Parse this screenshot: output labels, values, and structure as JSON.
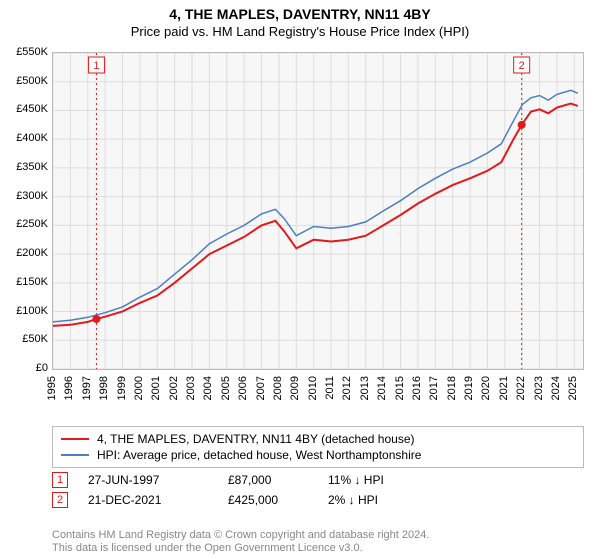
{
  "title": "4, THE MAPLES, DAVENTRY, NN11 4BY",
  "subtitle": "Price paid vs. HM Land Registry's House Price Index (HPI)",
  "chart": {
    "type": "line",
    "background_color": "#f7f7f7",
    "grid_color": "#dddddd",
    "axis_color": "#000000",
    "ylabel_prefix": "£",
    "ylim": [
      0,
      550000
    ],
    "ytick_step": 50000,
    "yticks": [
      "£0",
      "£50K",
      "£100K",
      "£150K",
      "£200K",
      "£250K",
      "£300K",
      "£350K",
      "£400K",
      "£450K",
      "£500K",
      "£550K"
    ],
    "xlim": [
      1995,
      2025.5
    ],
    "xticks": [
      1995,
      1996,
      1997,
      1998,
      1999,
      2000,
      2001,
      2002,
      2003,
      2004,
      2005,
      2006,
      2007,
      2008,
      2009,
      2010,
      2011,
      2012,
      2013,
      2014,
      2015,
      2016,
      2017,
      2018,
      2019,
      2020,
      2021,
      2022,
      2023,
      2024,
      2025
    ],
    "label_fontsize": 11,
    "series": [
      {
        "name": "property",
        "label": "4, THE MAPLES, DAVENTRY, NN11 4BY (detached house)",
        "color": "#e31a1c",
        "width": 2,
        "data": [
          [
            1995,
            75000
          ],
          [
            1996,
            77000
          ],
          [
            1997,
            82000
          ],
          [
            1997.5,
            87000
          ],
          [
            1998,
            91000
          ],
          [
            1999,
            100000
          ],
          [
            2000,
            115000
          ],
          [
            2001,
            128000
          ],
          [
            2002,
            150000
          ],
          [
            2003,
            175000
          ],
          [
            2004,
            200000
          ],
          [
            2005,
            215000
          ],
          [
            2006,
            230000
          ],
          [
            2007,
            250000
          ],
          [
            2007.8,
            258000
          ],
          [
            2008.3,
            240000
          ],
          [
            2009,
            210000
          ],
          [
            2010,
            225000
          ],
          [
            2011,
            222000
          ],
          [
            2012,
            225000
          ],
          [
            2013,
            232000
          ],
          [
            2014,
            250000
          ],
          [
            2015,
            268000
          ],
          [
            2016,
            288000
          ],
          [
            2017,
            305000
          ],
          [
            2018,
            320000
          ],
          [
            2019,
            332000
          ],
          [
            2020,
            345000
          ],
          [
            2020.8,
            360000
          ],
          [
            2021.5,
            400000
          ],
          [
            2021.97,
            425000
          ],
          [
            2022.5,
            448000
          ],
          [
            2023,
            452000
          ],
          [
            2023.5,
            445000
          ],
          [
            2024,
            455000
          ],
          [
            2024.8,
            462000
          ],
          [
            2025.2,
            458000
          ]
        ]
      },
      {
        "name": "hpi",
        "label": "HPI: Average price, detached house, West Northamptonshire",
        "color": "#4a7fc1",
        "width": 1.5,
        "data": [
          [
            1995,
            82000
          ],
          [
            1996,
            85000
          ],
          [
            1997,
            90000
          ],
          [
            1998,
            98000
          ],
          [
            1999,
            108000
          ],
          [
            2000,
            125000
          ],
          [
            2001,
            140000
          ],
          [
            2002,
            165000
          ],
          [
            2003,
            190000
          ],
          [
            2004,
            218000
          ],
          [
            2005,
            235000
          ],
          [
            2006,
            250000
          ],
          [
            2007,
            270000
          ],
          [
            2007.8,
            278000
          ],
          [
            2008.3,
            262000
          ],
          [
            2009,
            232000
          ],
          [
            2010,
            248000
          ],
          [
            2011,
            245000
          ],
          [
            2012,
            248000
          ],
          [
            2013,
            256000
          ],
          [
            2014,
            275000
          ],
          [
            2015,
            293000
          ],
          [
            2016,
            314000
          ],
          [
            2017,
            332000
          ],
          [
            2018,
            348000
          ],
          [
            2019,
            360000
          ],
          [
            2020,
            376000
          ],
          [
            2020.8,
            392000
          ],
          [
            2021.5,
            432000
          ],
          [
            2022,
            460000
          ],
          [
            2022.5,
            472000
          ],
          [
            2023,
            476000
          ],
          [
            2023.5,
            468000
          ],
          [
            2024,
            478000
          ],
          [
            2024.8,
            485000
          ],
          [
            2025.2,
            480000
          ]
        ]
      }
    ],
    "markers": [
      {
        "id": "1",
        "x": 1997.5,
        "y": 87000,
        "color": "#e31a1c"
      },
      {
        "id": "2",
        "x": 2021.97,
        "y": 425000,
        "color": "#e31a1c"
      }
    ],
    "marker_line_color": "#e31a1c",
    "marker_line_dash": "2,3"
  },
  "legend": {
    "items": [
      {
        "color": "#e31a1c",
        "label": "4, THE MAPLES, DAVENTRY, NN11 4BY (detached house)"
      },
      {
        "color": "#4a7fc1",
        "label": "HPI: Average price, detached house, West Northamptonshire"
      }
    ]
  },
  "marker_table": [
    {
      "badge": "1",
      "badge_color": "#e31a1c",
      "date": "27-JUN-1997",
      "price": "£87,000",
      "pct": "11% ↓ HPI"
    },
    {
      "badge": "2",
      "badge_color": "#e31a1c",
      "date": "21-DEC-2021",
      "price": "£425,000",
      "pct": "2% ↓ HPI"
    }
  ],
  "footer": {
    "line1": "Contains HM Land Registry data © Crown copyright and database right 2024.",
    "line2": "This data is licensed under the Open Government Licence v3.0."
  }
}
